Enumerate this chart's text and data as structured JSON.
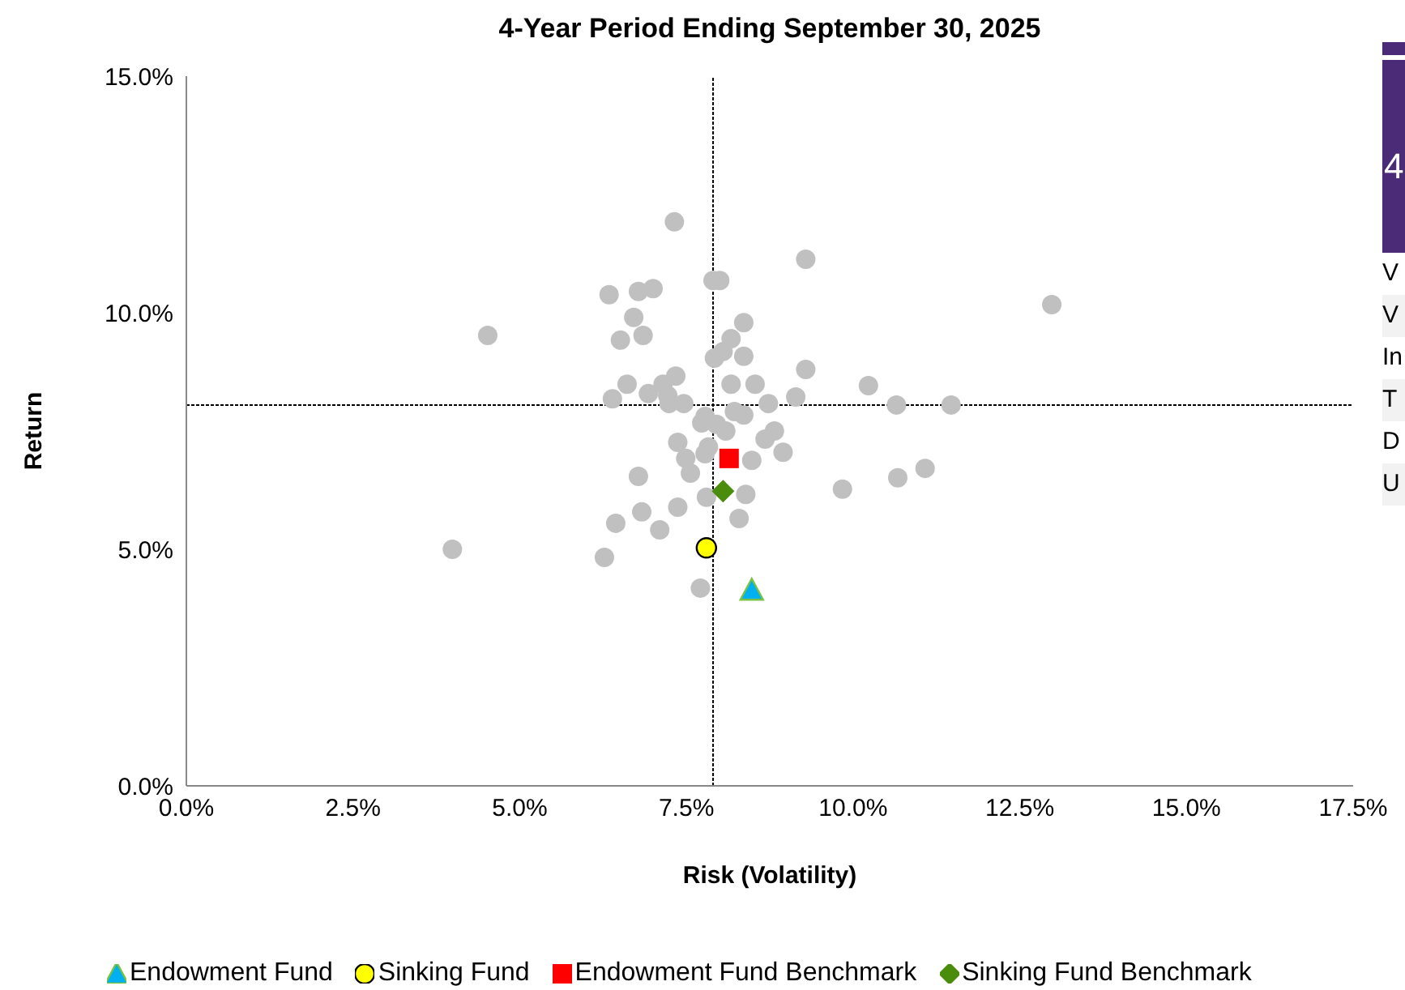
{
  "chart_data": [
    {
      "type": "scatter",
      "title": "4-Year Period Ending September 30, 2025",
      "xlabel": "Risk (Volatility)",
      "ylabel": "Return",
      "xlim": [
        0,
        17.5
      ],
      "xticks": [
        {
          "value": 0,
          "label": "0.0%"
        },
        {
          "value": 2.5,
          "label": "2.5%"
        },
        {
          "value": 5,
          "label": "5.0%"
        },
        {
          "value": 7.5,
          "label": "7.5%"
        },
        {
          "value": 10,
          "label": "10.0%"
        },
        {
          "value": 12.5,
          "label": "12.5%"
        },
        {
          "value": 15,
          "label": "15.0%"
        },
        {
          "value": 17.5,
          "label": "17.5%"
        }
      ],
      "ylim": [
        0,
        15
      ],
      "yticks": [
        {
          "value": 0,
          "label": "0.0%"
        },
        {
          "value": 5,
          "label": "5.0%"
        },
        {
          "value": 10,
          "label": "10.0%"
        },
        {
          "value": 15,
          "label": "15.0%"
        }
      ],
      "grid": false,
      "legend": "bottom",
      "ref_lines": [
        {
          "axis": "x",
          "value": 7.9,
          "line_style": "dotted",
          "color": "#000000"
        },
        {
          "axis": "y",
          "value": 8.05,
          "line_style": "dotted",
          "color": "#000000"
        }
      ],
      "series": [
        {
          "color": "#c0c0c0",
          "marker": "circle",
          "x": [
            7.32,
            9.29,
            12.98,
            7.9,
            8.0,
            6.34,
            6.78,
            7.0,
            6.71,
            4.52,
            6.51,
            6.85,
            8.36,
            8.17,
            8.05,
            7.92,
            8.36,
            9.29,
            10.23,
            6.61,
            7.34,
            7.15,
            8.17,
            8.53,
            6.93,
            6.39,
            7.22,
            7.24,
            7.46,
            8.73,
            9.14,
            10.65,
            11.47,
            7.78,
            7.73,
            8.22,
            8.36,
            7.95,
            8.09,
            8.82,
            8.68,
            7.37,
            8.95,
            7.83,
            7.78,
            7.49,
            8.48,
            7.56,
            6.78,
            10.67,
            11.08,
            9.84,
            8.39,
            7.8,
            7.37,
            6.83,
            8.29,
            6.44,
            7.1,
            6.27,
            7.71,
            3.99
          ],
          "values": [
            11.92,
            11.13,
            10.17,
            10.68,
            10.68,
            10.38,
            10.45,
            10.51,
            9.9,
            9.52,
            9.42,
            9.52,
            9.79,
            9.45,
            9.18,
            9.04,
            9.08,
            8.8,
            8.46,
            8.49,
            8.66,
            8.49,
            8.49,
            8.49,
            8.29,
            8.18,
            8.25,
            8.08,
            8.08,
            8.08,
            8.22,
            8.05,
            8.05,
            7.81,
            7.67,
            7.91,
            7.84,
            7.64,
            7.5,
            7.5,
            7.33,
            7.26,
            7.05,
            7.16,
            7.02,
            6.92,
            6.88,
            6.61,
            6.54,
            6.51,
            6.71,
            6.27,
            6.16,
            6.1,
            5.89,
            5.79,
            5.65,
            5.55,
            5.41,
            4.83,
            4.18,
            5.0
          ]
        },
        {
          "name": "Endowment Fund",
          "color": "#00b0f0",
          "marker": "triangle",
          "x": [
            8.48
          ],
          "values": [
            4.14
          ]
        },
        {
          "name": "Sinking Fund",
          "color": "#ffff00",
          "marker": "circle",
          "x": [
            7.8
          ],
          "values": [
            5.03
          ]
        },
        {
          "name": "Endowment Fund Benchmark",
          "color": "#ff0000",
          "marker": "square",
          "x": [
            8.14
          ],
          "values": [
            6.92
          ]
        },
        {
          "name": "Sinking Fund Benchmark",
          "color": "#4a8c0c",
          "marker": "diamond",
          "x": [
            8.05
          ],
          "values": [
            6.23
          ]
        }
      ]
    },
    {
      "type": "other",
      "annotations": [
        "4",
        "V",
        "V",
        "In",
        "T",
        "D",
        "U"
      ]
    }
  ]
}
